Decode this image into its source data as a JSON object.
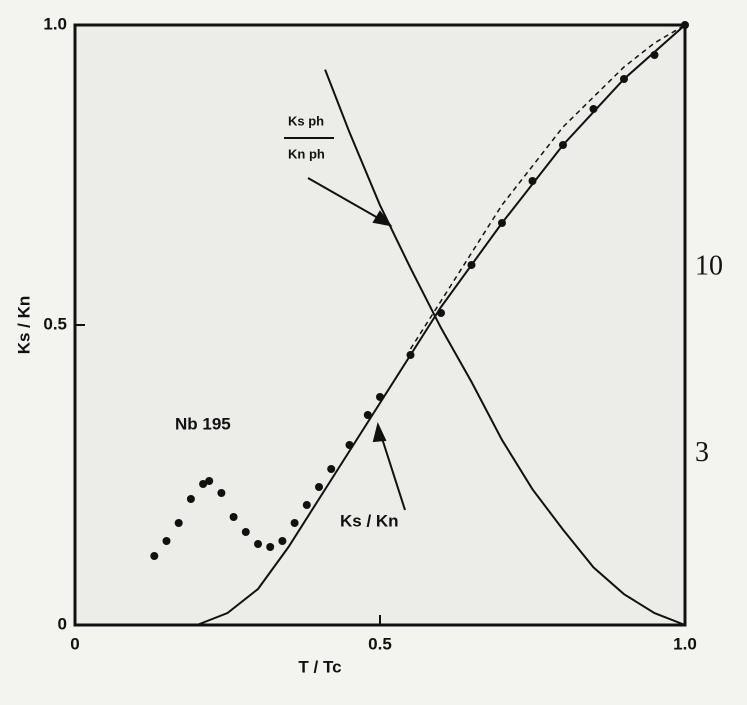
{
  "chart_data": {
    "type": "line",
    "x_label": "T / Tc",
    "y_label": "Ks / Kn",
    "annotations": {
      "sample": "Nb 195",
      "ks_kn": "Ks / Kn",
      "ph_num": "Ks ph",
      "ph_den": "Kn ph"
    },
    "xlim": [
      0,
      1
    ],
    "xticks": [
      0,
      0.5,
      {
        "value": 1,
        "label": "1.0"
      }
    ],
    "ylim": [
      0,
      1
    ],
    "yticks": [
      0,
      0.5,
      {
        "value": 1,
        "label": "1.0"
      }
    ],
    "y2lim": [
      1,
      48
    ],
    "y2ticks": [
      3,
      10
    ],
    "y2log": true,
    "series": [
      {
        "style": "points",
        "color": "#111",
        "x": [
          0.13,
          0.15,
          0.17,
          0.19,
          0.21,
          0.22,
          0.24,
          0.26,
          0.28,
          0.3,
          0.32,
          0.34,
          0.36,
          0.38,
          0.4,
          0.42,
          0.45,
          0.48,
          0.5,
          0.55,
          0.6,
          0.65,
          0.7,
          0.75,
          0.8,
          0.85,
          0.9,
          0.95,
          1.0
        ],
        "values": [
          0.115,
          0.14,
          0.17,
          0.21,
          0.235,
          0.24,
          0.22,
          0.18,
          0.155,
          0.135,
          0.13,
          0.14,
          0.17,
          0.2,
          0.23,
          0.26,
          0.3,
          0.35,
          0.38,
          0.45,
          0.52,
          0.6,
          0.67,
          0.74,
          0.8,
          0.86,
          0.91,
          0.95,
          1.0
        ]
      },
      {
        "style": "solid",
        "color": "#111",
        "x": [
          0.2,
          0.25,
          0.3,
          0.35,
          0.4,
          0.45,
          0.5,
          0.55,
          0.6,
          0.7,
          0.8,
          0.9,
          1.0
        ],
        "values": [
          0,
          0.02,
          0.06,
          0.13,
          0.21,
          0.29,
          0.37,
          0.45,
          0.53,
          0.67,
          0.8,
          0.91,
          1.0
        ]
      },
      {
        "style": "dashed",
        "color": "#111",
        "x": [
          0.55,
          0.6,
          0.7,
          0.8,
          0.9,
          0.95,
          1.0
        ],
        "values": [
          0.46,
          0.54,
          0.7,
          0.83,
          0.93,
          0.97,
          1.0
        ]
      },
      {
        "style": "solid",
        "color": "#111",
        "axis": "y2",
        "x": [
          0.41,
          0.45,
          0.5,
          0.55,
          0.6,
          0.65,
          0.7,
          0.75,
          0.8,
          0.85,
          0.9,
          0.95,
          1.0
        ],
        "values": [
          36,
          24,
          15,
          10,
          6.8,
          4.8,
          3.3,
          2.4,
          1.85,
          1.45,
          1.22,
          1.08,
          1.0
        ]
      }
    ]
  }
}
